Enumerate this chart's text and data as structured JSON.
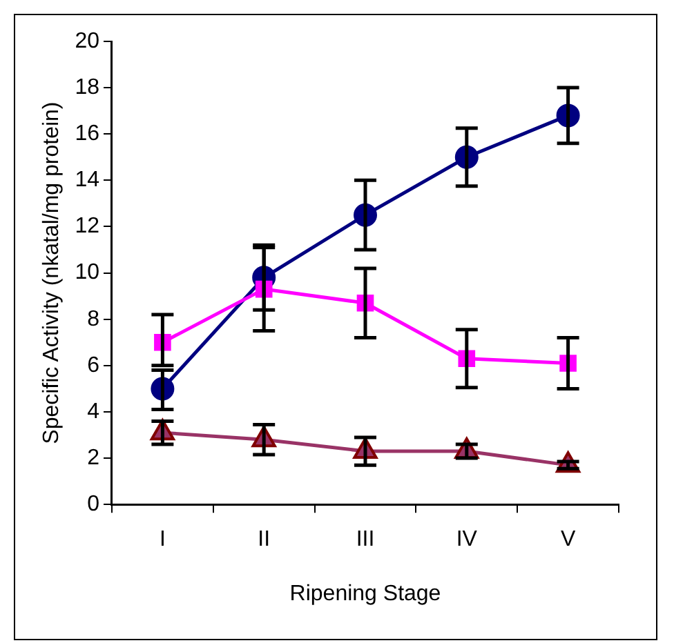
{
  "chart_data": {
    "type": "line",
    "xlabel": "Ripening Stage",
    "ylabel": "Specific Activity (nkatal/mg protein)",
    "categories": [
      "I",
      "II",
      "III",
      "IV",
      "V"
    ],
    "ylim": [
      0,
      20
    ],
    "yticks": [
      0,
      2,
      4,
      6,
      8,
      10,
      12,
      14,
      16,
      18,
      20
    ],
    "grid": false,
    "legend": false,
    "series": [
      {
        "color": "#000080",
        "marker": "circle",
        "values": [
          5.0,
          9.8,
          12.5,
          15.0,
          16.8
        ],
        "errors": [
          [
            4.1,
            5.8
          ],
          1.4,
          1.5,
          1.25,
          1.2
        ]
      },
      {
        "color": "#ff00ff",
        "marker": "square",
        "values": [
          7.0,
          9.3,
          8.7,
          6.3,
          6.1
        ],
        "errors": [
          [
            6.0,
            8.2
          ],
          1.8,
          1.5,
          1.25,
          1.1
        ]
      },
      {
        "color": "#993366",
        "marker": "triangle",
        "values": [
          3.1,
          2.8,
          2.3,
          2.3,
          1.7
        ],
        "errors": [
          0.5,
          0.65,
          0.6,
          0.3,
          0.15
        ]
      }
    ]
  }
}
